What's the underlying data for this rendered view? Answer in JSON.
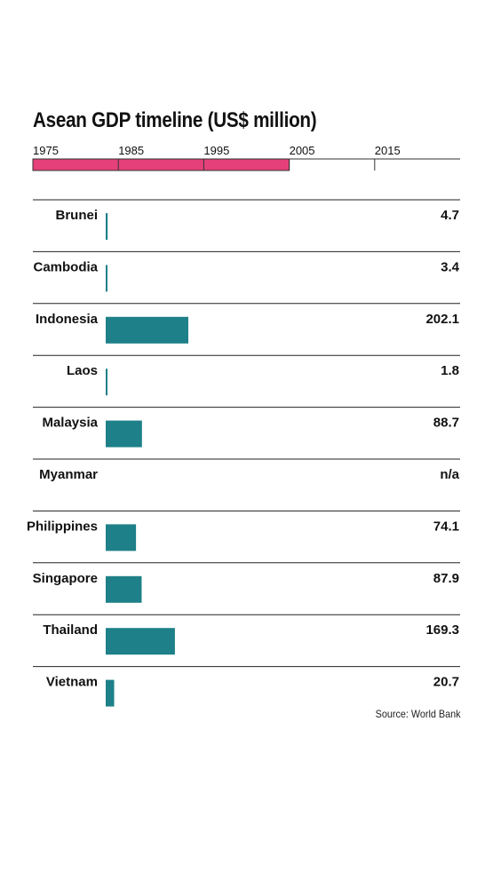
{
  "chart_data": {
    "type": "bar",
    "title": "Asean GDP timeline (US$ million)",
    "timeline": {
      "ticks": [
        "1975",
        "1985",
        "1995",
        "2005",
        "2015"
      ],
      "range": [
        1975,
        2025
      ],
      "highlight": [
        1975,
        2005
      ],
      "highlight_color": "#e5407a"
    },
    "categories": [
      "Brunei",
      "Cambodia",
      "Indonesia",
      "Laos",
      "Malaysia",
      "Myanmar",
      "Philippines",
      "Singapore",
      "Thailand",
      "Vietnam"
    ],
    "values": [
      4.7,
      3.4,
      202.1,
      1.8,
      88.7,
      null,
      74.1,
      87.9,
      169.3,
      20.7
    ],
    "value_labels": [
      "4.7",
      "3.4",
      "202.1",
      "1.8",
      "88.7",
      "n/a",
      "74.1",
      "87.9",
      "169.3",
      "20.7"
    ],
    "bar_color": "#1e8088",
    "xlim": [
      0,
      1000
    ],
    "source": "Source: World Bank"
  }
}
